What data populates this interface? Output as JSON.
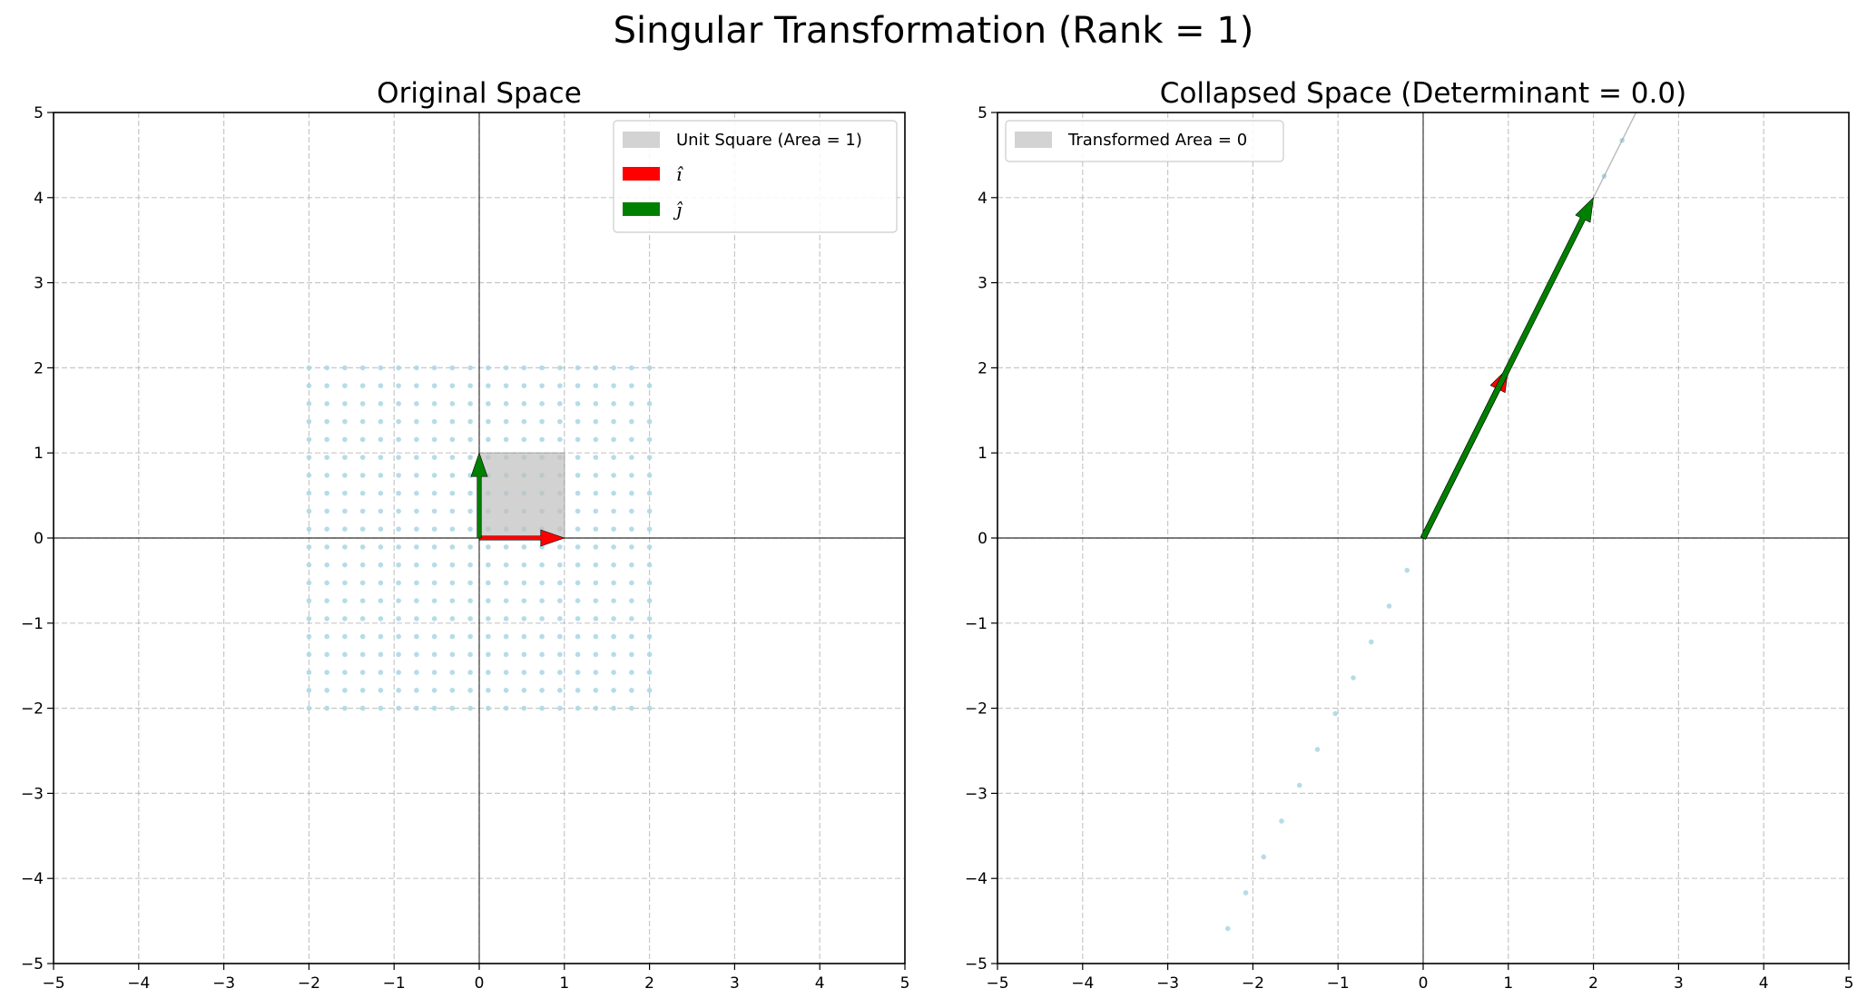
{
  "figure": {
    "suptitle": "Singular Transformation (Rank = 1)"
  },
  "chart_data": [
    {
      "type": "scatter",
      "title": "Original Space",
      "xlabel": "",
      "ylabel": "",
      "xlim": [
        -5,
        5
      ],
      "ylim": [
        -5,
        5
      ],
      "xticks": [
        -5,
        -4,
        -3,
        -2,
        -1,
        0,
        1,
        2,
        3,
        4,
        5
      ],
      "yticks": [
        -5,
        -4,
        -3,
        -2,
        -1,
        0,
        1,
        2,
        3,
        4,
        5
      ],
      "grid": true,
      "grid_style": "dashed",
      "legend_position": "upper-right",
      "point_grid": {
        "xmin": -2,
        "xmax": 2,
        "ymin": -2,
        "ymax": 2,
        "count_per_axis": 20,
        "color": "#add8e6"
      },
      "polygon": {
        "label": "Unit Square (Area = 1)",
        "points": [
          [
            0,
            0
          ],
          [
            1,
            0
          ],
          [
            1,
            1
          ],
          [
            0,
            1
          ]
        ],
        "color": "#c0c0c0"
      },
      "vectors": [
        {
          "label": "î",
          "from": [
            0,
            0
          ],
          "to": [
            1,
            0
          ],
          "color": "#ff0000"
        },
        {
          "label": "ĵ",
          "from": [
            0,
            0
          ],
          "to": [
            0,
            1
          ],
          "color": "#008000"
        }
      ],
      "legend": [
        "Unit Square (Area = 1)",
        "î",
        "ĵ"
      ]
    },
    {
      "type": "scatter",
      "title": "Collapsed Space (Determinant = 0.0)",
      "xlabel": "",
      "ylabel": "",
      "xlim": [
        -5,
        5
      ],
      "ylim": [
        -5,
        5
      ],
      "xticks": [
        -5,
        -4,
        -3,
        -2,
        -1,
        0,
        1,
        2,
        3,
        4,
        5
      ],
      "yticks": [
        -5,
        -4,
        -3,
        -2,
        -1,
        0,
        1,
        2,
        3,
        4,
        5
      ],
      "grid": true,
      "grid_style": "dashed",
      "legend_position": "upper-left",
      "transform_matrix": [
        [
          1,
          2
        ],
        [
          2,
          4
        ]
      ],
      "line_points": {
        "t_min": -6,
        "t_max": 6,
        "count": 39,
        "direction": [
          1,
          2
        ],
        "color": "#add8e6"
      },
      "polygon": {
        "label": "Transformed Area = 0",
        "points": [
          [
            0,
            0
          ],
          [
            1,
            2
          ],
          [
            3,
            6
          ],
          [
            2,
            4
          ]
        ],
        "color": "#c0c0c0"
      },
      "vectors": [
        {
          "label": "î",
          "from": [
            0,
            0
          ],
          "to": [
            1,
            2
          ],
          "color": "#ff0000"
        },
        {
          "label": "ĵ",
          "from": [
            0,
            0
          ],
          "to": [
            2,
            4
          ],
          "color": "#008000"
        }
      ],
      "legend": [
        "Transformed Area = 0"
      ]
    }
  ]
}
